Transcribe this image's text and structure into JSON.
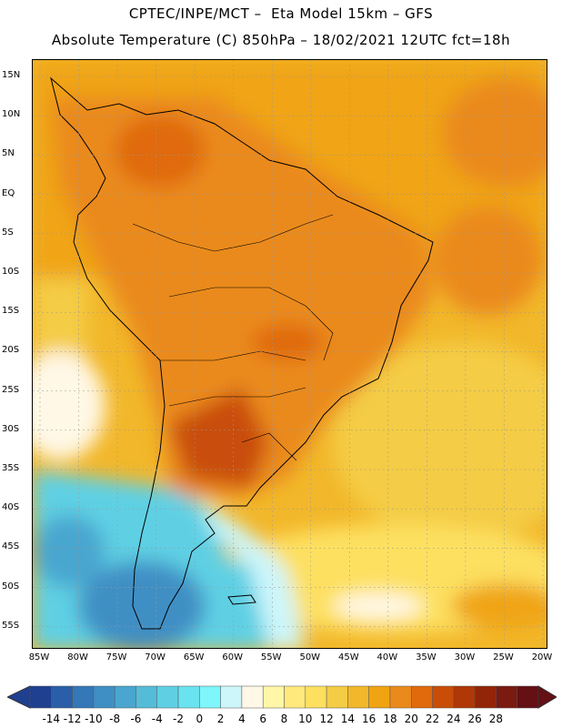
{
  "header": {
    "line1": "CPTEC/INPE/MCT –  Eta Model 15km – GFS",
    "line2": "Absolute Temperature (C) 850hPa – 18/02/2021 12UTC fct=18h"
  },
  "axes": {
    "lat_labels": [
      "15N",
      "10N",
      "5N",
      "EQ",
      "5S",
      "10S",
      "15S",
      "20S",
      "25S",
      "30S",
      "35S",
      "40S",
      "45S",
      "50S",
      "55S"
    ],
    "lon_labels": [
      "85W",
      "80W",
      "75W",
      "70W",
      "65W",
      "60W",
      "55W",
      "50W",
      "45W",
      "40W",
      "35W",
      "30W",
      "25W",
      "20W"
    ]
  },
  "colorbar": {
    "ticks": [
      "-14",
      "-12",
      "-10",
      "-8",
      "-6",
      "-4",
      "-2",
      "0",
      "2",
      "4",
      "6",
      "8",
      "10",
      "12",
      "14",
      "16",
      "18",
      "20",
      "22",
      "24",
      "26",
      "28"
    ],
    "colors": [
      "#1f3f8f",
      "#2a5ea8",
      "#3478b8",
      "#3f8fc4",
      "#4aa6cf",
      "#55bcd8",
      "#5fd0e4",
      "#6ae3f0",
      "#7ff6fb",
      "#cdf6fb",
      "#fff8e6",
      "#fff6a8",
      "#ffe97c",
      "#fde060",
      "#f4cc45",
      "#f2b72a",
      "#f0a412",
      "#ea8a1c",
      "#e06a0c",
      "#c94d07",
      "#b03706",
      "#922508",
      "#7a1a10",
      "#641014"
    ]
  },
  "map_colors": {
    "ocean_north": "#f0a412",
    "ocean_mid": "#f4cc45",
    "ocean_cool": "#fde060",
    "land_warm": "#ea8a1c",
    "land_hot": "#e06a0c",
    "land_hottest": "#c94d07",
    "cold_deep": "#3f8fc4",
    "cold": "#5fd0e4",
    "cool": "#cdf6fb",
    "near_zero": "#fff8e6",
    "outline": "#000000"
  }
}
